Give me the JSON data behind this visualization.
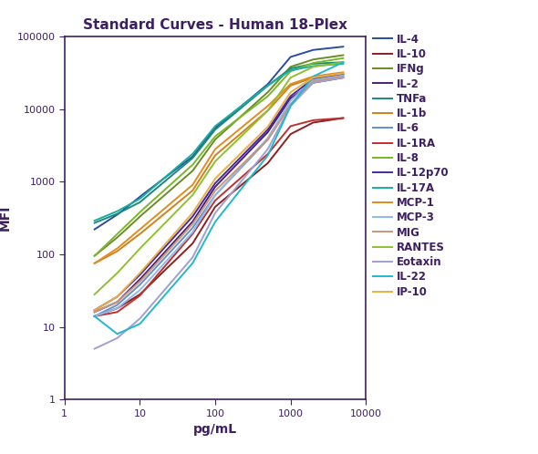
{
  "title": "Standard Curves - Human 18-Plex",
  "xlabel": "pg/mL",
  "ylabel": "MFI",
  "xlim": [
    1,
    10000
  ],
  "ylim": [
    1,
    100000
  ],
  "series": [
    {
      "name": "IL-4",
      "color": "#2c4d9e",
      "x": [
        2.5,
        5,
        10,
        50,
        100,
        500,
        1000,
        2000,
        5000
      ],
      "y": [
        220,
        350,
        620,
        2200,
        5500,
        22000,
        52000,
        65000,
        72000
      ]
    },
    {
      "name": "IL-10",
      "color": "#8b2020",
      "x": [
        2.5,
        5,
        10,
        50,
        100,
        500,
        1000,
        2000,
        5000
      ],
      "y": [
        14,
        18,
        28,
        140,
        450,
        1800,
        4500,
        6500,
        7500
      ]
    },
    {
      "name": "IFNg",
      "color": "#6a8c28",
      "x": [
        2.5,
        5,
        10,
        50,
        100,
        500,
        1000,
        2000,
        5000
      ],
      "y": [
        95,
        170,
        330,
        1400,
        3800,
        17000,
        38000,
        48000,
        55000
      ]
    },
    {
      "name": "IL-2",
      "color": "#4a2070",
      "x": [
        2.5,
        5,
        10,
        50,
        100,
        500,
        1000,
        2000,
        5000
      ],
      "y": [
        16,
        22,
        45,
        280,
        850,
        4800,
        14000,
        23000,
        27000
      ]
    },
    {
      "name": "TNFa",
      "color": "#1a8a7a",
      "x": [
        2.5,
        5,
        10,
        50,
        100,
        500,
        1000,
        2000,
        5000
      ],
      "y": [
        270,
        360,
        520,
        2100,
        5200,
        21000,
        36000,
        42000,
        44000
      ]
    },
    {
      "name": "IL-1b",
      "color": "#d4801a",
      "x": [
        2.5,
        5,
        10,
        50,
        100,
        500,
        1000,
        2000,
        5000
      ],
      "y": [
        75,
        110,
        190,
        750,
        2300,
        9500,
        21000,
        27000,
        30000
      ]
    },
    {
      "name": "IL-6",
      "color": "#6090d0",
      "x": [
        2.5,
        5,
        10,
        50,
        100,
        500,
        1000,
        2000,
        5000
      ],
      "y": [
        14,
        20,
        38,
        230,
        650,
        3800,
        11500,
        24000,
        29000
      ]
    },
    {
      "name": "IL-1RA",
      "color": "#c03030",
      "x": [
        2.5,
        5,
        10,
        50,
        100,
        500,
        1000,
        2000,
        5000
      ],
      "y": [
        14,
        16,
        27,
        190,
        550,
        2400,
        5800,
        7000,
        7500
      ]
    },
    {
      "name": "IL-8",
      "color": "#7ab828",
      "x": [
        2.5,
        5,
        10,
        50,
        100,
        500,
        1000,
        2000,
        5000
      ],
      "y": [
        95,
        190,
        380,
        1700,
        4200,
        15000,
        33000,
        43000,
        50000
      ]
    },
    {
      "name": "IL-12p70",
      "color": "#4a28a0",
      "x": [
        2.5,
        5,
        10,
        50,
        100,
        500,
        1000,
        2000,
        5000
      ],
      "y": [
        17,
        26,
        52,
        330,
        950,
        5200,
        15000,
        26000,
        30000
      ]
    },
    {
      "name": "IL-17A",
      "color": "#1aada0",
      "x": [
        2.5,
        5,
        10,
        50,
        100,
        500,
        1000,
        2000,
        5000
      ],
      "y": [
        290,
        390,
        580,
        2400,
        5800,
        21000,
        34000,
        39000,
        42000
      ]
    },
    {
      "name": "MCP-1",
      "color": "#e08c20",
      "x": [
        2.5,
        5,
        10,
        50,
        100,
        500,
        1000,
        2000,
        5000
      ],
      "y": [
        75,
        120,
        220,
        900,
        2800,
        11000,
        22000,
        28000,
        32000
      ]
    },
    {
      "name": "MCP-3",
      "color": "#90b8e8",
      "x": [
        2.5,
        5,
        10,
        50,
        100,
        500,
        1000,
        2000,
        5000
      ],
      "y": [
        14,
        18,
        32,
        200,
        650,
        4000,
        13000,
        25000,
        29000
      ]
    },
    {
      "name": "MIG",
      "color": "#c8987a",
      "x": [
        2.5,
        5,
        10,
        50,
        100,
        500,
        1000,
        2000,
        5000
      ],
      "y": [
        16,
        22,
        42,
        260,
        750,
        3800,
        11500,
        24000,
        28000
      ]
    },
    {
      "name": "RANTES",
      "color": "#90c030",
      "x": [
        2.5,
        5,
        10,
        50,
        100,
        500,
        1000,
        2000,
        5000
      ],
      "y": [
        28,
        55,
        120,
        650,
        1900,
        9500,
        27000,
        38000,
        44000
      ]
    },
    {
      "name": "Eotaxin",
      "color": "#a0a0d0",
      "x": [
        2.5,
        5,
        10,
        50,
        100,
        500,
        1000,
        2000,
        5000
      ],
      "y": [
        5,
        7,
        13,
        90,
        370,
        2800,
        11000,
        23000,
        27000
      ]
    },
    {
      "name": "IL-22",
      "color": "#20b8d0",
      "x": [
        2.5,
        5,
        10,
        50,
        100,
        500,
        1000,
        2000,
        5000
      ],
      "y": [
        14,
        8,
        11,
        75,
        280,
        2300,
        11000,
        28000,
        44000
      ]
    },
    {
      "name": "IP-10",
      "color": "#e8b040",
      "x": [
        2.5,
        5,
        10,
        50,
        100,
        500,
        1000,
        2000,
        5000
      ],
      "y": [
        17,
        26,
        55,
        370,
        1100,
        5700,
        17000,
        27000,
        31000
      ]
    }
  ],
  "text_color": "#3d2060",
  "spine_color": "#3d2060",
  "background_color": "#ffffff",
  "title_fontsize": 11,
  "label_fontsize": 10,
  "tick_fontsize": 8,
  "legend_fontsize": 8.5
}
